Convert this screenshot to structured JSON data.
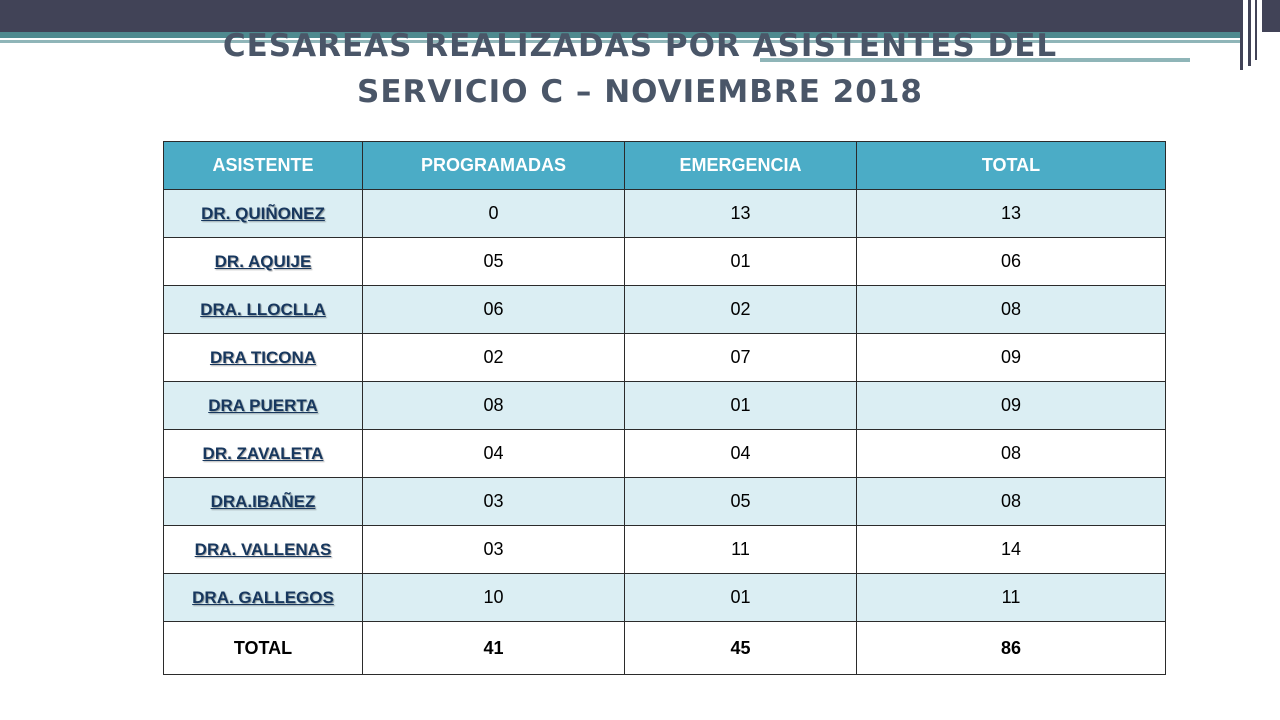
{
  "title_line1": "CESAREAS REALIZADAS POR ASISTENTES DEL",
  "title_line2": "SERVICIO C – NOVIEMBRE 2018",
  "colors": {
    "header_bg": "#4bacc6",
    "band_bg": "#dbeef3",
    "topbar": "#414357",
    "title": "#4a5668"
  },
  "table": {
    "headers": [
      "ASISTENTE",
      "PROGRAMADAS",
      "EMERGENCIA",
      "TOTAL"
    ],
    "rows": [
      [
        "DR. QUIÑONEZ",
        "0",
        "13",
        "13"
      ],
      [
        "DR. AQUIJE",
        "05",
        "01",
        "06"
      ],
      [
        "DRA. LLOCLLA",
        "06",
        "02",
        "08"
      ],
      [
        "DRA TICONA",
        "02",
        "07",
        "09"
      ],
      [
        "DRA PUERTA",
        "08",
        "01",
        "09"
      ],
      [
        "DR. ZAVALETA",
        "04",
        "04",
        "08"
      ],
      [
        "DRA.IBAÑEZ",
        "03",
        "05",
        "08"
      ],
      [
        "DRA. VALLENAS",
        "03",
        "11",
        "14"
      ],
      [
        "DRA. GALLEGOS",
        "10",
        "01",
        "11"
      ]
    ],
    "totals": [
      "TOTAL",
      "41",
      "45",
      "86"
    ]
  }
}
